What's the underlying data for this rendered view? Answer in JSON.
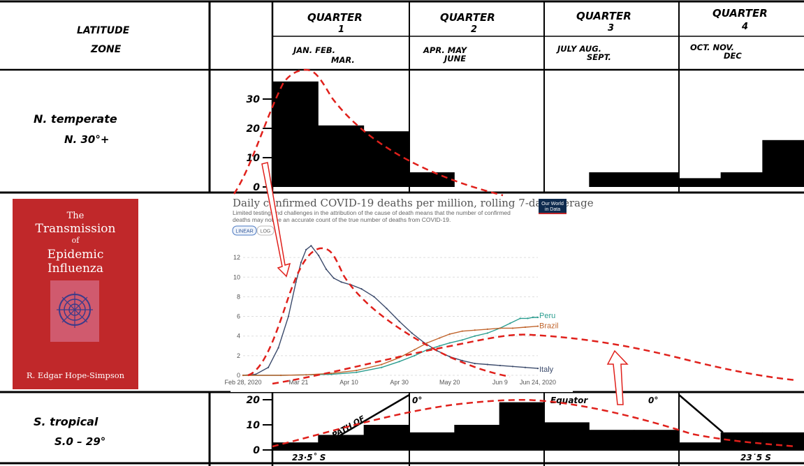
{
  "header": {
    "latitude_label": "LATITUDE",
    "zone_label": "ZONE",
    "quarters": [
      {
        "title": "QUARTER",
        "num": "1",
        "months1": "JAN.   FEB.",
        "months2": "MAR."
      },
      {
        "title": "QUARTER",
        "num": "2",
        "months1": "APR.  MAY",
        "months2": "JUNE"
      },
      {
        "title": "QUARTER",
        "num": "3",
        "months1": "JULY   AUG.",
        "months2": "SEPT."
      },
      {
        "title": "QUARTER",
        "num": "4",
        "months1": "OCT.  NOV.",
        "months2": "DEC"
      }
    ]
  },
  "north": {
    "label1": "N. temperate",
    "label2": "N. 30°+",
    "ticks": [
      "30",
      "20",
      "10",
      "0"
    ]
  },
  "south": {
    "label1": "S. tropical",
    "label2": "S.0 – 29°",
    "ticks": [
      "20",
      "10",
      "0"
    ],
    "path_label": "PATH OF",
    "deg_label": "0°",
    "equator_label": "Equator",
    "equator_deg": "0°",
    "lat_left": "23·5˚ S",
    "lat_right": "23˙5 S"
  },
  "book": {
    "the": "The",
    "title1": "Transmission",
    "of": "of",
    "title2": "Epidemic",
    "title3": "Influenza",
    "author": "R. Edgar Hope-Simpson"
  },
  "owid": {
    "title": "Daily confirmed COVID-19 deaths per million, rolling 7-day average",
    "subtitle1": "Limited testing and challenges in the attribution of the cause of death means that the number of confirmed",
    "subtitle2": "deaths may not be an accurate count of the true number of deaths from COVID-19.",
    "btn_linear": "LINEAR",
    "btn_log": "LOG",
    "logo1": "Our World",
    "logo2": "in Data"
  },
  "colors": {
    "ink": "#000000",
    "red_dash": "#e0201b",
    "book_red": "#c0282a",
    "peru": "#2a9d8f",
    "brazil": "#c0642c",
    "italy": "#3b4a6b",
    "owid_navy": "#0d2a4e"
  },
  "chart_data": [
    {
      "type": "bar",
      "title": "N. temperate N. 30°+",
      "categories": [
        "Jan",
        "Feb",
        "Mar",
        "Apr",
        "May",
        "Jun",
        "Jul",
        "Aug",
        "Sep",
        "Oct",
        "Nov",
        "Dec"
      ],
      "values": [
        36,
        21,
        19,
        5,
        0,
        0,
        0,
        5,
        5,
        3,
        5,
        16
      ],
      "ylim": [
        0,
        40
      ],
      "yticks": [
        0,
        10,
        20,
        30
      ]
    },
    {
      "type": "bar",
      "title": "S. tropical S.0 – 29°",
      "categories": [
        "Jan",
        "Feb",
        "Mar",
        "Apr",
        "May",
        "Jun",
        "Jul",
        "Aug",
        "Sep",
        "Oct",
        "Nov",
        "Dec"
      ],
      "values": [
        3,
        6,
        10,
        7,
        10,
        19,
        11,
        8,
        8,
        3,
        7,
        7
      ],
      "ylim": [
        0,
        22
      ],
      "yticks": [
        0,
        10,
        20
      ]
    },
    {
      "type": "line",
      "title": "Daily confirmed COVID-19 deaths per million, rolling 7-day average",
      "xticks": [
        "Feb 28, 2020",
        "Mar 21",
        "Apr 10",
        "Apr 30",
        "May 20",
        "Jun 9",
        "Jun 24, 2020"
      ],
      "xtick_days": [
        0,
        22,
        42,
        62,
        82,
        102,
        117
      ],
      "x_range_days": [
        0,
        117
      ],
      "yticks": [
        0,
        2,
        4,
        6,
        8,
        10,
        12
      ],
      "ylim": [
        0,
        13.5
      ],
      "series": [
        {
          "name": "Italy",
          "points": [
            [
              0,
              0
            ],
            [
              5,
              0.1
            ],
            [
              10,
              0.8
            ],
            [
              14,
              2.8
            ],
            [
              18,
              6
            ],
            [
              21,
              9.5
            ],
            [
              23,
              11.5
            ],
            [
              25,
              12.8
            ],
            [
              27,
              13.2
            ],
            [
              30,
              12.2
            ],
            [
              33,
              10.8
            ],
            [
              36,
              9.9
            ],
            [
              39,
              9.5
            ],
            [
              43,
              9.2
            ],
            [
              47,
              8.8
            ],
            [
              52,
              8
            ],
            [
              57,
              6.8
            ],
            [
              62,
              5.5
            ],
            [
              67,
              4.3
            ],
            [
              72,
              3.3
            ],
            [
              77,
              2.5
            ],
            [
              82,
              1.9
            ],
            [
              87,
              1.5
            ],
            [
              92,
              1.2
            ],
            [
              97,
              1.1
            ],
            [
              102,
              1
            ],
            [
              107,
              0.9
            ],
            [
              112,
              0.8
            ],
            [
              117,
              0.7
            ]
          ]
        },
        {
          "name": "Peru",
          "points": [
            [
              0,
              0
            ],
            [
              15,
              0
            ],
            [
              25,
              0.05
            ],
            [
              35,
              0.1
            ],
            [
              45,
              0.3
            ],
            [
              55,
              0.8
            ],
            [
              62,
              1.4
            ],
            [
              68,
              2
            ],
            [
              73,
              2.6
            ],
            [
              78,
              3
            ],
            [
              82,
              3.3
            ],
            [
              87,
              3.6
            ],
            [
              92,
              4
            ],
            [
              97,
              4.3
            ],
            [
              102,
              4.8
            ],
            [
              106,
              5.3
            ],
            [
              110,
              5.8
            ],
            [
              113,
              5.8
            ],
            [
              115,
              5.9
            ],
            [
              117,
              5.9
            ]
          ]
        },
        {
          "name": "Brazil",
          "points": [
            [
              0,
              0
            ],
            [
              15,
              0
            ],
            [
              25,
              0.05
            ],
            [
              35,
              0.2
            ],
            [
              45,
              0.5
            ],
            [
              55,
              1.1
            ],
            [
              62,
              1.8
            ],
            [
              68,
              2.6
            ],
            [
              73,
              3.3
            ],
            [
              78,
              3.8
            ],
            [
              82,
              4.2
            ],
            [
              87,
              4.5
            ],
            [
              92,
              4.6
            ],
            [
              97,
              4.7
            ],
            [
              102,
              4.8
            ],
            [
              107,
              4.8
            ],
            [
              112,
              4.9
            ],
            [
              117,
              5
            ]
          ]
        }
      ]
    }
  ]
}
